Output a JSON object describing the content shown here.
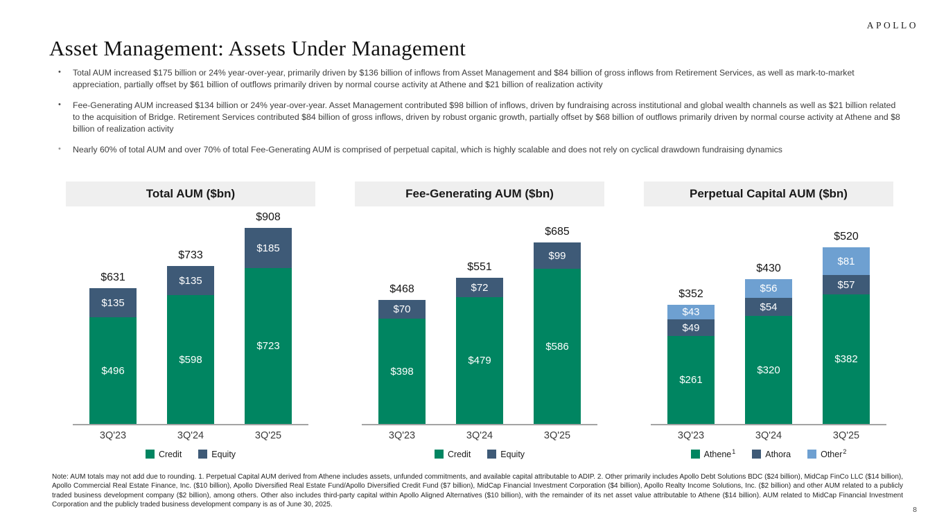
{
  "brand": {
    "logo_text": "APOLLO"
  },
  "header": {
    "title": "Asset Management: Assets Under Management"
  },
  "bullets": [
    {
      "text": "Total AUM increased $175 billion or 24% year-over-year, primarily driven by $136 billion of inflows from Asset Management and $84 billion of gross inflows from Retirement Services, as well as mark-to-market appreciation, partially offset by $61 billion of outflows primarily driven by normal course activity at Athene and $21 billion of realization activity"
    },
    {
      "text": "Fee-Generating AUM increased $134 billion or 24% year-over-year. Asset Management contributed $98 billion of inflows, driven by fundraising across institutional and global wealth channels as well as $21 billion related to the acquisition of Bridge. Retirement Services contributed $84 billion of gross inflows, driven by robust organic growth, partially offset by $68 billion of outflows primarily driven by normal course activity at Athene and $8 billion of realization activity"
    },
    {
      "text": "Nearly 60% of total AUM and over 70% of total Fee-Generating AUM is comprised of perpetual capital, which is highly scalable and does not rely on cyclical drawdown fundraising dynamics"
    }
  ],
  "chart_data": [
    {
      "type": "bar",
      "stacked": true,
      "title": "Total AUM ($bn)",
      "categories": [
        "3Q'23",
        "3Q'24",
        "3Q'25"
      ],
      "series": [
        {
          "name": "Credit",
          "color": "#008561",
          "values": [
            496,
            598,
            723
          ]
        },
        {
          "name": "Equity",
          "color": "#3E5A77",
          "values": [
            135,
            135,
            185
          ]
        }
      ],
      "totals": [
        631,
        733,
        908
      ],
      "ylim": [
        0,
        1010
      ],
      "grid": false,
      "legend_position": "bottom"
    },
    {
      "type": "bar",
      "stacked": true,
      "title": "Fee-Generating AUM ($bn)",
      "categories": [
        "3Q'23",
        "3Q'24",
        "3Q'25"
      ],
      "series": [
        {
          "name": "Credit",
          "color": "#008561",
          "values": [
            398,
            479,
            586
          ]
        },
        {
          "name": "Equity",
          "color": "#3E5A77",
          "values": [
            70,
            72,
            99
          ]
        }
      ],
      "totals": [
        468,
        551,
        685
      ],
      "ylim": [
        0,
        821
      ],
      "grid": false,
      "legend_position": "bottom"
    },
    {
      "type": "bar",
      "stacked": true,
      "title": "Perpetual Capital AUM ($bn)",
      "categories": [
        "3Q'23",
        "3Q'24",
        "3Q'25"
      ],
      "series": [
        {
          "name": "Athene",
          "sup": "1",
          "color": "#008561",
          "values": [
            261,
            320,
            382
          ]
        },
        {
          "name": "Athora",
          "color": "#3E5A77",
          "values": [
            49,
            54,
            57
          ]
        },
        {
          "name": "Other",
          "sup": "2",
          "color": "#6EA0D1",
          "values": [
            43,
            56,
            81
          ]
        }
      ],
      "totals": [
        352,
        430,
        520
      ],
      "ylim": [
        0,
        643
      ],
      "grid": false,
      "legend_position": "bottom"
    }
  ],
  "footnote": "Note: AUM totals may not add due to rounding. 1. Perpetual Capital AUM derived from Athene includes assets, unfunded commitments, and available capital attributable to ADIP. 2. Other primarily includes Apollo Debt Solutions BDC ($24 billion), MidCap FinCo LLC ($14 billion), Apollo Commercial Real Estate Finance, Inc. ($10 billion), Apollo Diversified Real Estate Fund/Apollo Diversified Credit Fund ($7 billion), MidCap Financial Investment Corporation ($4 billion), Apollo Realty Income Solutions, Inc. ($2 billion) and other AUM related to a publicly traded business development company ($2 billion), among others. Other also includes third-party capital within Apollo Aligned Alternatives ($10 billion), with the remainder of its net asset value attributable to Athene ($14 billion). AUM related to MidCap Financial Investment Corporation and the publicly traded business development company is as of June 30, 2025.",
  "page_number": "8"
}
